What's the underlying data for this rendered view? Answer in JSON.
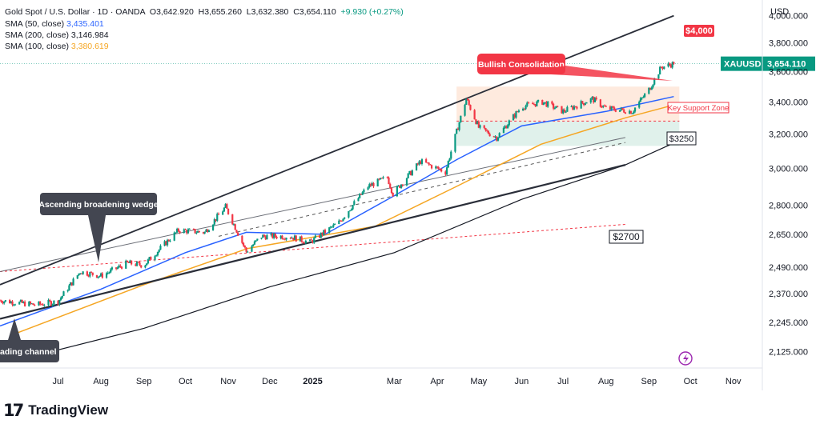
{
  "header": {
    "symbol": "Gold Spot / U.S. Dollar · 1D · OANDA",
    "open": "O3,642.920",
    "high": "H3,655.260",
    "low": "L3,632.380",
    "close": "C3,654.110",
    "change": "+9.930 (+0.27%)",
    "sma50_label": "SMA (50, close)",
    "sma50_value": "3,435.401",
    "sma200_label": "SMA (200, close)",
    "sma200_value": "3,146.984",
    "sma100_label": "SMA (100, close)",
    "sma100_value": "3,380.619"
  },
  "currency": "USD",
  "last_price_tag": {
    "symbol": "XAUUSD",
    "price": "3,654.110"
  },
  "brand": "TradingView",
  "colors": {
    "up": "#089981",
    "down": "#f23645",
    "sma50": "#2962ff",
    "sma100": "#f5a623",
    "sma200": "#131722",
    "callout": "#434651",
    "alert": "#f23645"
  },
  "annotations": {
    "wedge": "Ascending broadening wedge",
    "channel": "ading channel",
    "bullish": "Bullish Consolidation",
    "support_zone": "Key Support Zone",
    "target_4000": "$4,000",
    "level_3250": "$3250",
    "level_2700": "$2700"
  },
  "chart_data": {
    "type": "candlestick",
    "title": "Gold Spot / U.S. Dollar · 1D · OANDA",
    "y_axis": {
      "unit": "USD",
      "tick_labels": [
        "4,000.000",
        "3,800.000",
        "3,600.000",
        "3,400.000",
        "3,200.000",
        "3,000.000",
        "2,800.000",
        "2,650.000",
        "2,490.000",
        "2,370.000",
        "2,245.000",
        "2,125.000"
      ],
      "ticks": [
        4000,
        3800,
        3600,
        3400,
        3200,
        3000,
        2800,
        2650,
        2490,
        2370,
        2245,
        2125
      ],
      "scale": "log",
      "range": [
        2060,
        4120
      ]
    },
    "x_axis": {
      "tick_labels": [
        "Jul",
        "Aug",
        "Sep",
        "Oct",
        "Nov",
        "Dec",
        "2025",
        "Mar",
        "Apr",
        "May",
        "Jun",
        "Jul",
        "Aug",
        "Sep",
        "Oct",
        "Nov"
      ],
      "tick_dates": [
        "2024-07-01",
        "2024-08-01",
        "2024-09-01",
        "2024-10-01",
        "2024-11-01",
        "2024-12-01",
        "2025-01-01",
        "2025-03-01",
        "2025-04-01",
        "2025-05-01",
        "2025-06-01",
        "2025-07-01",
        "2025-08-01",
        "2025-09-01",
        "2025-10-01",
        "2025-11-01"
      ],
      "range": [
        "2024-05-20",
        "2025-11-22"
      ]
    },
    "price_path": [
      {
        "date": "2024-05-20",
        "close": 2340
      },
      {
        "date": "2024-06-01",
        "close": 2330
      },
      {
        "date": "2024-06-15",
        "close": 2320
      },
      {
        "date": "2024-07-01",
        "close": 2335
      },
      {
        "date": "2024-07-17",
        "close": 2470
      },
      {
        "date": "2024-08-01",
        "close": 2450
      },
      {
        "date": "2024-08-20",
        "close": 2510
      },
      {
        "date": "2024-09-01",
        "close": 2500
      },
      {
        "date": "2024-09-26",
        "close": 2670
      },
      {
        "date": "2024-10-15",
        "close": 2660
      },
      {
        "date": "2024-10-30",
        "close": 2790
      },
      {
        "date": "2024-11-14",
        "close": 2565
      },
      {
        "date": "2024-11-25",
        "close": 2640
      },
      {
        "date": "2024-12-15",
        "close": 2640
      },
      {
        "date": "2024-12-30",
        "close": 2610
      },
      {
        "date": "2025-01-20",
        "close": 2710
      },
      {
        "date": "2025-02-10",
        "close": 2900
      },
      {
        "date": "2025-02-24",
        "close": 2950
      },
      {
        "date": "2025-02-28",
        "close": 2860
      },
      {
        "date": "2025-03-20",
        "close": 3040
      },
      {
        "date": "2025-04-07",
        "close": 2980
      },
      {
        "date": "2025-04-22",
        "close": 3420
      },
      {
        "date": "2025-05-01",
        "close": 3240
      },
      {
        "date": "2025-05-14",
        "close": 3180
      },
      {
        "date": "2025-06-01",
        "close": 3370
      },
      {
        "date": "2025-06-16",
        "close": 3400
      },
      {
        "date": "2025-07-01",
        "close": 3340
      },
      {
        "date": "2025-07-22",
        "close": 3420
      },
      {
        "date": "2025-08-01",
        "close": 3360
      },
      {
        "date": "2025-08-20",
        "close": 3340
      },
      {
        "date": "2025-09-01",
        "close": 3480
      },
      {
        "date": "2025-09-10",
        "close": 3630
      },
      {
        "date": "2025-09-19",
        "close": 3654.11
      }
    ],
    "sma50": [
      {
        "date": "2024-05-20",
        "v": 2230
      },
      {
        "date": "2024-08-01",
        "v": 2390
      },
      {
        "date": "2024-10-01",
        "v": 2560
      },
      {
        "date": "2024-11-14",
        "v": 2660
      },
      {
        "date": "2025-01-10",
        "v": 2650
      },
      {
        "date": "2025-03-01",
        "v": 2850
      },
      {
        "date": "2025-04-15",
        "v": 3050
      },
      {
        "date": "2025-06-01",
        "v": 3250
      },
      {
        "date": "2025-08-01",
        "v": 3340
      },
      {
        "date": "2025-09-19",
        "v": 3435
      }
    ],
    "sma100": [
      {
        "date": "2024-06-01",
        "v": 2200
      },
      {
        "date": "2024-09-01",
        "v": 2410
      },
      {
        "date": "2024-11-15",
        "v": 2580
      },
      {
        "date": "2025-02-15",
        "v": 2690
      },
      {
        "date": "2025-04-15",
        "v": 2900
      },
      {
        "date": "2025-06-15",
        "v": 3140
      },
      {
        "date": "2025-08-15",
        "v": 3300
      },
      {
        "date": "2025-09-19",
        "v": 3381
      }
    ],
    "sma200": [
      {
        "date": "2024-06-01",
        "v": 2090
      },
      {
        "date": "2024-09-01",
        "v": 2220
      },
      {
        "date": "2024-12-01",
        "v": 2400
      },
      {
        "date": "2025-03-01",
        "v": 2560
      },
      {
        "date": "2025-06-01",
        "v": 2830
      },
      {
        "date": "2025-08-15",
        "v": 3020
      },
      {
        "date": "2025-09-19",
        "v": 3147
      }
    ],
    "drawings": {
      "wedge_upper": [
        {
          "date": "2024-05-20",
          "v": 2410
        },
        {
          "date": "2025-09-19",
          "v": 4000
        }
      ],
      "wedge_lower": [
        {
          "date": "2024-05-20",
          "v": 2260
        },
        {
          "date": "2025-08-15",
          "v": 3020
        }
      ],
      "channel_line": [
        {
          "date": "2024-05-20",
          "v": 2470
        },
        {
          "date": "2025-08-15",
          "v": 3180
        }
      ],
      "red_dashed": [
        {
          "date": "2024-05-20",
          "v": 2470
        },
        {
          "date": "2025-08-15",
          "v": 2700
        }
      ],
      "grey_dashed": [
        {
          "date": "2024-10-25",
          "v": 2640
        },
        {
          "date": "2025-08-15",
          "v": 3150
        }
      ],
      "consolidation_zone": {
        "from": "2025-04-15",
        "to": "2025-09-23",
        "high": 3500,
        "low": 3130
      },
      "support_zone_split": 3280
    }
  }
}
